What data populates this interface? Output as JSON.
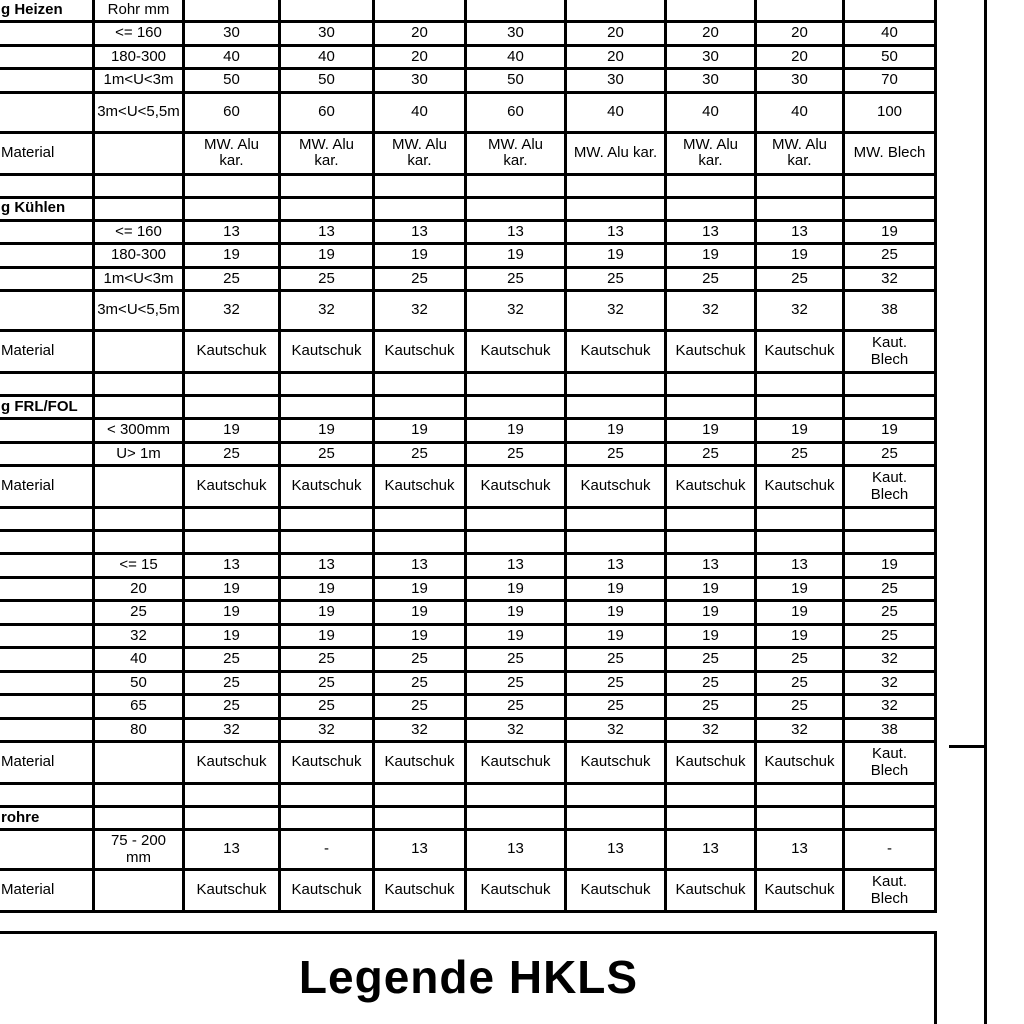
{
  "legend": {
    "title": "Legende HKLS"
  },
  "table": {
    "column_count": 10,
    "rows": [
      {
        "kind": "header",
        "label": "g Heizen",
        "size": "Rohr mm",
        "values": [
          "",
          "",
          "",
          "",
          "",
          "",
          "",
          ""
        ]
      },
      {
        "kind": "data",
        "label": "",
        "size": "<= 160",
        "values": [
          "30",
          "30",
          "20",
          "30",
          "20",
          "20",
          "20",
          "40"
        ]
      },
      {
        "kind": "data",
        "label": "",
        "size": "180-300",
        "values": [
          "40",
          "40",
          "20",
          "40",
          "20",
          "30",
          "20",
          "50"
        ]
      },
      {
        "kind": "data",
        "label": "",
        "size": "1m<U<3m",
        "values": [
          "50",
          "50",
          "30",
          "50",
          "30",
          "30",
          "30",
          "70"
        ]
      },
      {
        "kind": "data_tall",
        "label": "",
        "size": "3m<U<5,5m",
        "values": [
          "60",
          "60",
          "40",
          "60",
          "40",
          "40",
          "40",
          "100"
        ]
      },
      {
        "kind": "material",
        "label": "Material",
        "size": "",
        "values": [
          "MW. Alu\nkar.",
          "MW. Alu\nkar.",
          "MW. Alu\nkar.",
          "MW. Alu\nkar.",
          "MW. Alu kar.",
          "MW. Alu\nkar.",
          "MW. Alu\nkar.",
          "MW. Blech"
        ]
      },
      {
        "kind": "empty",
        "label": "",
        "size": "",
        "values": [
          "",
          "",
          "",
          "",
          "",
          "",
          "",
          ""
        ]
      },
      {
        "kind": "header",
        "label": "g Kühlen",
        "size": "",
        "values": [
          "",
          "",
          "",
          "",
          "",
          "",
          "",
          ""
        ]
      },
      {
        "kind": "data",
        "label": "",
        "size": "<= 160",
        "values": [
          "13",
          "13",
          "13",
          "13",
          "13",
          "13",
          "13",
          "19"
        ]
      },
      {
        "kind": "data",
        "label": "",
        "size": "180-300",
        "values": [
          "19",
          "19",
          "19",
          "19",
          "19",
          "19",
          "19",
          "25"
        ]
      },
      {
        "kind": "data",
        "label": "",
        "size": "1m<U<3m",
        "values": [
          "25",
          "25",
          "25",
          "25",
          "25",
          "25",
          "25",
          "32"
        ]
      },
      {
        "kind": "data_tall",
        "label": "",
        "size": "3m<U<5,5m",
        "values": [
          "32",
          "32",
          "32",
          "32",
          "32",
          "32",
          "32",
          "38"
        ]
      },
      {
        "kind": "material",
        "label": "Material",
        "size": "",
        "values": [
          "Kautschuk",
          "Kautschuk",
          "Kautschuk",
          "Kautschuk",
          "Kautschuk",
          "Kautschuk",
          "Kautschuk",
          "Kaut.\nBlech"
        ]
      },
      {
        "kind": "empty",
        "label": "",
        "size": "",
        "values": [
          "",
          "",
          "",
          "",
          "",
          "",
          "",
          ""
        ]
      },
      {
        "kind": "header",
        "label": "g FRL/FOL",
        "size": "",
        "values": [
          "",
          "",
          "",
          "",
          "",
          "",
          "",
          ""
        ]
      },
      {
        "kind": "data",
        "label": "",
        "size": "< 300mm",
        "values": [
          "19",
          "19",
          "19",
          "19",
          "19",
          "19",
          "19",
          "19"
        ]
      },
      {
        "kind": "data",
        "label": "",
        "size": "U> 1m",
        "values": [
          "25",
          "25",
          "25",
          "25",
          "25",
          "25",
          "25",
          "25"
        ]
      },
      {
        "kind": "material",
        "label": "Material",
        "size": "",
        "values": [
          "Kautschuk",
          "Kautschuk",
          "Kautschuk",
          "Kautschuk",
          "Kautschuk",
          "Kautschuk",
          "Kautschuk",
          "Kaut.\nBlech"
        ]
      },
      {
        "kind": "empty",
        "label": "",
        "size": "",
        "values": [
          "",
          "",
          "",
          "",
          "",
          "",
          "",
          ""
        ]
      },
      {
        "kind": "empty",
        "label": "",
        "size": "",
        "values": [
          "",
          "",
          "",
          "",
          "",
          "",
          "",
          ""
        ]
      },
      {
        "kind": "data",
        "label": "",
        "size": "<= 15",
        "values": [
          "13",
          "13",
          "13",
          "13",
          "13",
          "13",
          "13",
          "19"
        ]
      },
      {
        "kind": "data",
        "label": "",
        "size": "20",
        "values": [
          "19",
          "19",
          "19",
          "19",
          "19",
          "19",
          "19",
          "25"
        ]
      },
      {
        "kind": "data",
        "label": "",
        "size": "25",
        "values": [
          "19",
          "19",
          "19",
          "19",
          "19",
          "19",
          "19",
          "25"
        ]
      },
      {
        "kind": "data",
        "label": "",
        "size": "32",
        "values": [
          "19",
          "19",
          "19",
          "19",
          "19",
          "19",
          "19",
          "25"
        ]
      },
      {
        "kind": "data",
        "label": "",
        "size": "40",
        "values": [
          "25",
          "25",
          "25",
          "25",
          "25",
          "25",
          "25",
          "32"
        ]
      },
      {
        "kind": "data",
        "label": "",
        "size": "50",
        "values": [
          "25",
          "25",
          "25",
          "25",
          "25",
          "25",
          "25",
          "32"
        ]
      },
      {
        "kind": "data",
        "label": "",
        "size": "65",
        "values": [
          "25",
          "25",
          "25",
          "25",
          "25",
          "25",
          "25",
          "32"
        ]
      },
      {
        "kind": "data",
        "label": "",
        "size": "80",
        "values": [
          "32",
          "32",
          "32",
          "32",
          "32",
          "32",
          "32",
          "38"
        ]
      },
      {
        "kind": "material",
        "label": "Material",
        "size": "",
        "values": [
          "Kautschuk",
          "Kautschuk",
          "Kautschuk",
          "Kautschuk",
          "Kautschuk",
          "Kautschuk",
          "Kautschuk",
          "Kaut.\nBlech"
        ]
      },
      {
        "kind": "empty",
        "label": "",
        "size": "",
        "values": [
          "",
          "",
          "",
          "",
          "",
          "",
          "",
          ""
        ]
      },
      {
        "kind": "header",
        "label": "rohre",
        "size": "",
        "values": [
          "",
          "",
          "",
          "",
          "",
          "",
          "",
          ""
        ]
      },
      {
        "kind": "data_tall",
        "label": "",
        "size": "75 - 200\nmm",
        "values": [
          "13",
          "-",
          "13",
          "13",
          "13",
          "13",
          "13",
          "-"
        ]
      },
      {
        "kind": "material",
        "label": "Material",
        "size": "",
        "values": [
          "Kautschuk",
          "Kautschuk",
          "Kautschuk",
          "Kautschuk",
          "Kautschuk",
          "Kautschuk",
          "Kautschuk",
          "Kaut.\nBlech"
        ]
      }
    ]
  }
}
